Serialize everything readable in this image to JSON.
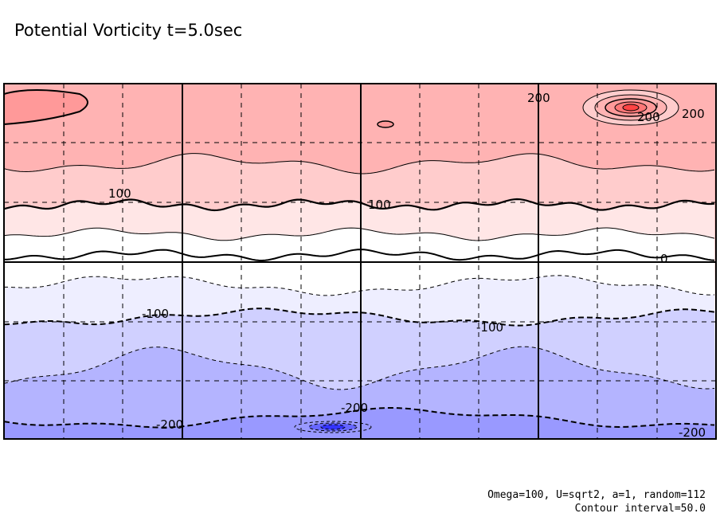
{
  "chart_data": {
    "type": "contour",
    "title": "Potential Vorticity t=5.0sec",
    "variable": "Potential Vorticity",
    "time": "t=5.0sec",
    "contour_interval": 50.0,
    "levels": [
      -250,
      -200,
      -150,
      -100,
      -50,
      0,
      50,
      100,
      150,
      200,
      250
    ],
    "fill_colors": [
      "#9999ff",
      "#b4b4ff",
      "#d0d0ff",
      "#eeeeff",
      "#ffffff",
      "#ffe6e6",
      "#ffcccc",
      "#ffb3b3",
      "#ff9999"
    ],
    "negative_contours": "dashed",
    "zero_and_labeled_contours": "thick",
    "grid": "on",
    "contour_labels": [
      "200",
      "200",
      "200",
      "100",
      "100",
      "0",
      "-100",
      "-100",
      "-200",
      "-200",
      "-200"
    ]
  },
  "footer": {
    "params": "Omega=100, U=sqrt2, a=1, random=112",
    "interval": "Contour interval=50.0"
  }
}
